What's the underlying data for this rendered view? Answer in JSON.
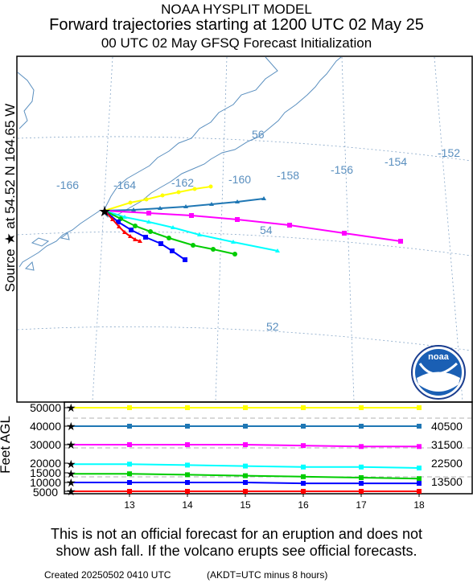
{
  "header": {
    "line1": "NOAA HYSPLIT MODEL",
    "line2": "Forward trajectories starting at 1200 UTC 02 May 25",
    "line3": "00 UTC 02 May     GFSQ  Forecast Initialization"
  },
  "side_label": "Source ★  at    54.52 N  164.65 W",
  "map": {
    "longitude_labels": [
      "-166",
      "-164",
      "-162",
      "-160",
      "-158",
      "-156",
      "-154",
      "-152"
    ],
    "latitude_labels": [
      "56",
      "54",
      "52"
    ],
    "logo_text": "noaa"
  },
  "height_panel": {
    "ylabel": "Feet AGL",
    "ytick_labels": [
      "50000",
      "40000",
      "30000",
      "20000",
      "15000",
      "10000",
      "5000"
    ],
    "xtick_labels": [
      "13",
      "14",
      "15",
      "16",
      "17",
      "18"
    ],
    "right_labels": [
      "40500",
      "31500",
      "22500",
      "13500"
    ]
  },
  "chart_data": {
    "type": "line",
    "title": "Forward trajectories starting at 1200 UTC 02 May 25",
    "xlabel": "",
    "ylabel": "Feet AGL",
    "x": [
      13,
      14,
      15,
      16,
      17,
      18
    ],
    "ylim": [
      0,
      52500
    ],
    "colors": {
      "yellow": "#ffff00",
      "steelblue": "#1f77b4",
      "magenta": "#ff00ff",
      "cyan": "#00ffff",
      "green": "#00cc00",
      "blue": "#0000ff",
      "red": "#ff0000"
    },
    "series": [
      {
        "color": "#ffff00",
        "values": [
          50000,
          50000,
          50000,
          50000,
          50000,
          50000
        ]
      },
      {
        "color": "#1f77b4",
        "values": [
          40000,
          40000,
          40000,
          40000,
          40000,
          40000
        ]
      },
      {
        "color": "#ff00ff",
        "values": [
          30000,
          30000,
          30000,
          29500,
          29000,
          29000
        ]
      },
      {
        "color": "#00ffff",
        "values": [
          19500,
          19000,
          18500,
          18000,
          18000,
          17500
        ]
      },
      {
        "color": "#00cc00",
        "values": [
          14500,
          14000,
          13500,
          13000,
          12500,
          12000
        ]
      },
      {
        "color": "#0000ff",
        "values": [
          10000,
          10000,
          10000,
          9500,
          9500,
          9500
        ]
      },
      {
        "color": "#ff0000",
        "values": [
          5000,
          5000,
          5000,
          5000,
          5000,
          5000
        ]
      }
    ]
  },
  "footer": {
    "disclaimer1": "This is not an official forecast for an eruption and does not",
    "disclaimer2": "show ash fall. If the volcano erupts see official forecasts.",
    "created": "Created 20250502 0410 UTC",
    "akdt": "(AKDT=UTC minus 8 hours)"
  }
}
